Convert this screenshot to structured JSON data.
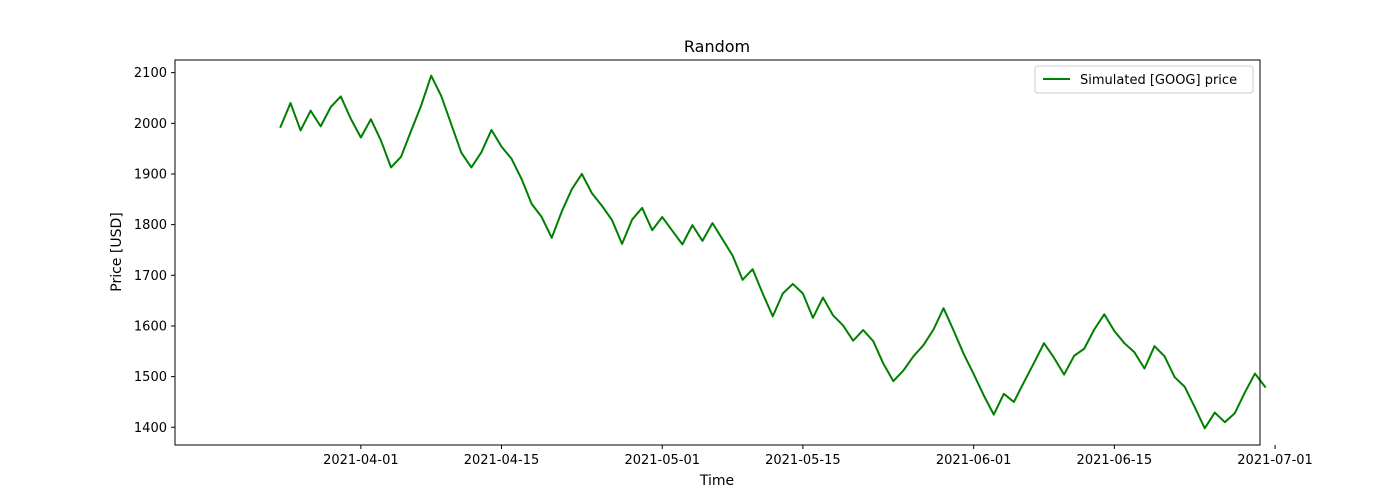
{
  "chart_data": {
    "type": "line",
    "title": "Random",
    "xlabel": "Time",
    "ylabel": "Price [USD]",
    "ylim": [
      1365,
      2125
    ],
    "yticks": [
      1400,
      1500,
      1600,
      1700,
      1800,
      1900,
      2000,
      2100
    ],
    "xlim_days": [
      -18.5,
      89.5
    ],
    "x_ticks": [
      {
        "day": 0,
        "label": "2021-04-01"
      },
      {
        "day": 14,
        "label": "2021-04-15"
      },
      {
        "day": 30,
        "label": "2021-05-01"
      },
      {
        "day": 44,
        "label": "2021-05-15"
      },
      {
        "day": 61,
        "label": "2021-06-01"
      },
      {
        "day": 75,
        "label": "2021-06-15"
      },
      {
        "day": 91,
        "label": "2021-07-01"
      }
    ],
    "x_origin_date": "2021-04-01",
    "x_start_date": "2021-03-24",
    "legend_position": "top-right",
    "series": [
      {
        "name": "Simulated [GOOG] price",
        "color": "#008000",
        "values": [
          1993,
          2040,
          1986,
          2025,
          1994,
          2032,
          2053,
          2009,
          1972,
          2008,
          1966,
          1913,
          1934,
          1985,
          2035,
          2094,
          2054,
          1998,
          1942,
          1913,
          1943,
          1987,
          1954,
          1930,
          1890,
          1841,
          1815,
          1774,
          1826,
          1870,
          1900,
          1862,
          1837,
          1809,
          1762,
          1810,
          1833,
          1789,
          1815,
          1788,
          1761,
          1799,
          1768,
          1803,
          1771,
          1739,
          1691,
          1712,
          1664,
          1619,
          1664,
          1683,
          1664,
          1616,
          1656,
          1621,
          1601,
          1571,
          1592,
          1570,
          1526,
          1491,
          1512,
          1540,
          1562,
          1593,
          1635,
          1591,
          1545,
          1505,
          1463,
          1425,
          1466,
          1450,
          1489,
          1527,
          1566,
          1537,
          1504,
          1541,
          1555,
          1593,
          1623,
          1590,
          1566,
          1548,
          1516,
          1560,
          1540,
          1499,
          1480,
          1440,
          1398,
          1429,
          1410,
          1428,
          1469,
          1506,
          1480
        ]
      }
    ]
  }
}
